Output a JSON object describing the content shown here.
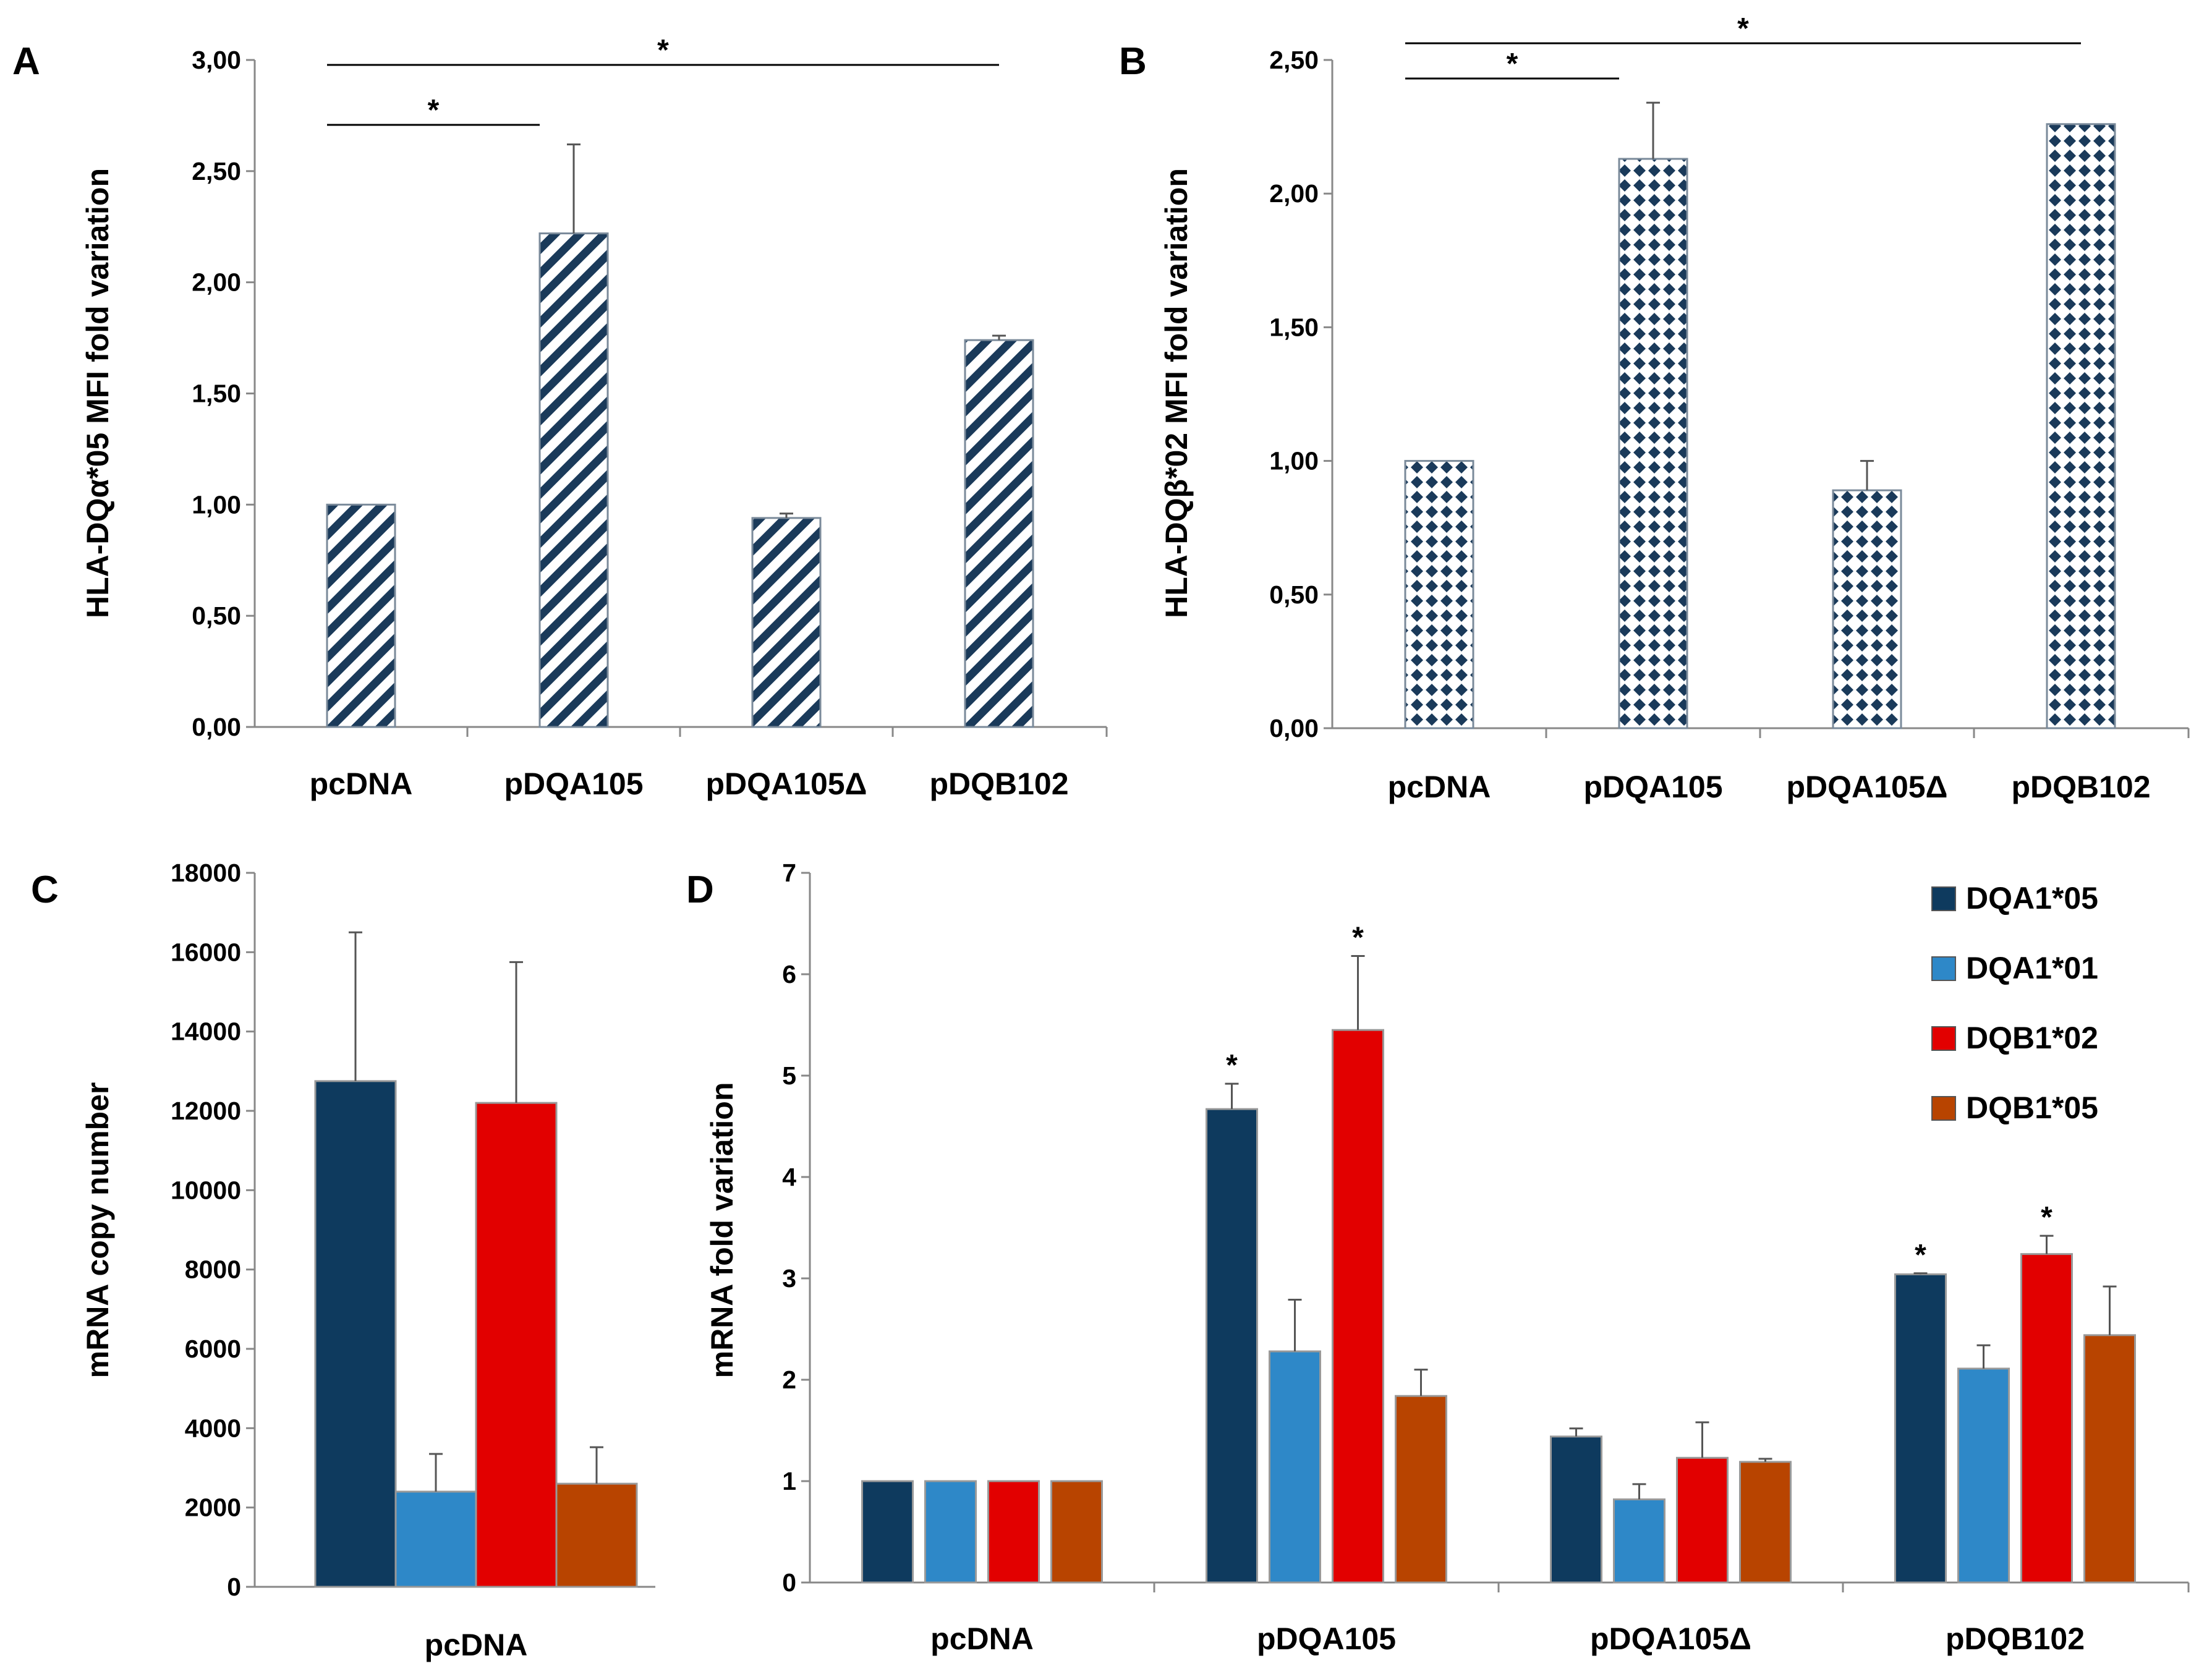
{
  "figure": {
    "colors": {
      "navy": "#1a3a5a",
      "dqa105": "#0e3a5e",
      "dqa101": "#2e88c8",
      "dqb102": "#e20000",
      "dqb105": "#b84400",
      "axis": "#888888"
    }
  },
  "chart_data": [
    {
      "panel": "A",
      "type": "bar",
      "pattern": "diagonal-stripes",
      "categories": [
        "pcDNA",
        "pDQA105",
        "pDQA105Δ",
        "pDQB102"
      ],
      "values": [
        1.0,
        2.22,
        0.94,
        1.74
      ],
      "errors": [
        0.0,
        0.4,
        0.02,
        0.02
      ],
      "ylabel": "HLA-DQα*05 MFI fold variation",
      "ylim": [
        0,
        3
      ],
      "yticks": [
        "0,00",
        "0,50",
        "1,00",
        "1,50",
        "2,00",
        "2,50",
        "3,00"
      ],
      "significance": [
        {
          "from": "pcDNA",
          "to": "pDQA105",
          "label": "*"
        },
        {
          "from": "pcDNA",
          "to": "pDQB102",
          "label": "*"
        }
      ]
    },
    {
      "panel": "B",
      "type": "bar",
      "pattern": "diamond-dots",
      "categories": [
        "pcDNA",
        "pDQA105",
        "pDQA105Δ",
        "pDQB102"
      ],
      "values": [
        1.0,
        2.13,
        0.89,
        2.26
      ],
      "errors": [
        0.0,
        0.21,
        0.11,
        0.0
      ],
      "ylabel": "HLA-DQβ*02 MFI fold variation",
      "ylim": [
        0,
        2.5
      ],
      "yticks": [
        "0,00",
        "0,50",
        "1,00",
        "1,50",
        "2,00",
        "2,50"
      ],
      "significance": [
        {
          "from": "pcDNA",
          "to": "pDQA105",
          "label": "*"
        },
        {
          "from": "pcDNA",
          "to": "pDQB102",
          "label": "*"
        }
      ]
    },
    {
      "panel": "C",
      "type": "bar",
      "categories": [
        "pcDNA"
      ],
      "series": [
        {
          "name": "DQA1*05",
          "values": [
            12750
          ],
          "errors": [
            3750
          ]
        },
        {
          "name": "DQA1*01",
          "values": [
            2400
          ],
          "errors": [
            950
          ]
        },
        {
          "name": "DQB1*02",
          "values": [
            12200
          ],
          "errors": [
            3550
          ]
        },
        {
          "name": "DQB1*05",
          "values": [
            2600
          ],
          "errors": [
            920
          ]
        }
      ],
      "ylabel": "mRNA copy number",
      "ylim": [
        0,
        18000
      ],
      "yticks": [
        "0",
        "2000",
        "4000",
        "6000",
        "8000",
        "10000",
        "12000",
        "14000",
        "16000",
        "18000"
      ]
    },
    {
      "panel": "D",
      "type": "bar",
      "categories": [
        "pcDNA",
        "pDQA105",
        "pDQA105Δ",
        "pDQB102"
      ],
      "series": [
        {
          "name": "DQA1*05",
          "values": [
            1.0,
            4.67,
            1.44,
            3.04
          ],
          "errors": [
            0.0,
            0.25,
            0.08,
            0.01
          ],
          "stars": [
            "",
            "*",
            "",
            "*"
          ]
        },
        {
          "name": "DQA1*01",
          "values": [
            1.0,
            2.28,
            0.82,
            2.11
          ],
          "errors": [
            0.0,
            0.51,
            0.15,
            0.23
          ],
          "stars": [
            "",
            "",
            "",
            ""
          ]
        },
        {
          "name": "DQB1*02",
          "values": [
            1.0,
            5.45,
            1.23,
            3.24
          ],
          "errors": [
            0.0,
            0.73,
            0.35,
            0.18
          ],
          "stars": [
            "",
            "*",
            "",
            "*"
          ]
        },
        {
          "name": "DQB1*05",
          "values": [
            1.0,
            1.84,
            1.19,
            2.44
          ],
          "errors": [
            0.0,
            0.26,
            0.03,
            0.48
          ],
          "stars": [
            "",
            "",
            "",
            ""
          ]
        }
      ],
      "ylabel": "mRNA fold variation",
      "ylim": [
        0,
        7
      ],
      "yticks": [
        "0",
        "1",
        "2",
        "3",
        "4",
        "5",
        "6",
        "7"
      ],
      "legend": [
        "DQA1*05",
        "DQA1*01",
        "DQB1*02",
        "DQB1*05"
      ]
    }
  ]
}
